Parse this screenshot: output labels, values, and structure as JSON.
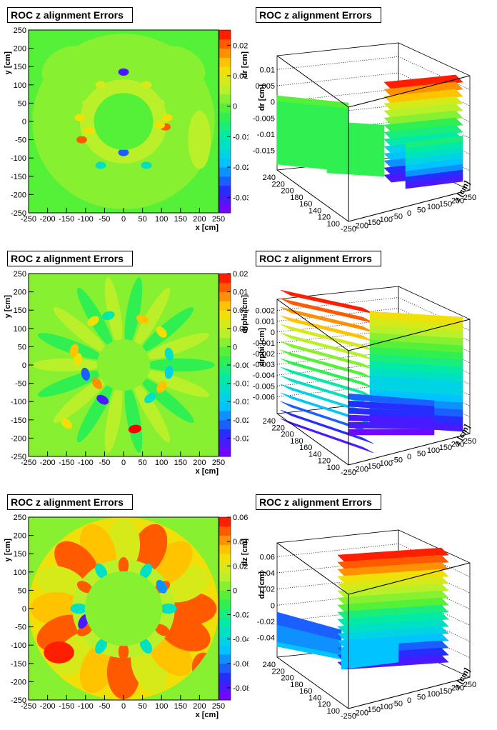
{
  "chart_data": [
    {
      "type": "heatmap",
      "title": "ROC z alignment Errors",
      "xlabel": "x [cm]",
      "ylabel": "y [cm]",
      "zlabel": "dr [cm]",
      "xlim": [
        -250,
        250
      ],
      "ylim": [
        -250,
        250
      ],
      "zlim": [
        -0.035,
        0.025
      ],
      "x_ticks": [
        "-250",
        "-200",
        "-150",
        "-100",
        "-50",
        "0",
        "50",
        "100",
        "150",
        "200",
        "250"
      ],
      "y_ticks": [
        "250",
        "200",
        "150",
        "100",
        "50",
        "0",
        "-50",
        "-100",
        "-150",
        "-200",
        "-250"
      ],
      "z_ticks": [
        "0.02",
        "0.01",
        "0",
        "-0.01",
        "-0.02",
        "-0.03"
      ],
      "z_tick_values": [
        0.02,
        0.01,
        0,
        -0.01,
        -0.02,
        -0.03
      ]
    },
    {
      "type": "surface",
      "title": "ROC z alignment Errors",
      "zlabel": "dr [cm]",
      "ylabel": "z [cm]",
      "z_ticks": [
        "0.01",
        "0.005",
        "0",
        "-0.005",
        "-0.01",
        "-0.015"
      ],
      "r_ticks": [
        "240",
        "220",
        "200",
        "180",
        "160",
        "140",
        "120",
        "100"
      ],
      "x_ticks": [
        "-250",
        "-200",
        "-150",
        "-100",
        "-50",
        "0",
        "50",
        "100",
        "150",
        "200",
        "250"
      ]
    },
    {
      "type": "heatmap",
      "title": "ROC z alignment Errors",
      "xlabel": "x [cm]",
      "ylabel": "y [cm]",
      "zlabel": "drphi [cm]",
      "xlim": [
        -250,
        250
      ],
      "ylim": [
        -250,
        250
      ],
      "zlim": [
        -0.03,
        0.02
      ],
      "x_ticks": [
        "-250",
        "-200",
        "-150",
        "-100",
        "-50",
        "0",
        "50",
        "100",
        "150",
        "200",
        "250"
      ],
      "y_ticks": [
        "250",
        "200",
        "150",
        "100",
        "50",
        "0",
        "-50",
        "-100",
        "-150",
        "-200",
        "-250"
      ],
      "z_ticks": [
        "0.02",
        "0.015",
        "0.01",
        "0.005",
        "0",
        "-0.005",
        "-0.01",
        "-0.015",
        "-0.02",
        "-0.025"
      ],
      "z_tick_values": [
        0.02,
        0.015,
        0.01,
        0.005,
        0,
        -0.005,
        -0.01,
        -0.015,
        -0.02,
        -0.025
      ]
    },
    {
      "type": "surface",
      "title": "ROC z alignment Errors",
      "zlabel": "drphi [cm]",
      "ylabel": "z [cm]",
      "z_ticks": [
        "0.002",
        "0.001",
        "0",
        "-0.001",
        "-0.002",
        "-0.003",
        "-0.004",
        "-0.005",
        "-0.006"
      ],
      "r_ticks": [
        "240",
        "220",
        "200",
        "180",
        "160",
        "140",
        "120",
        "100"
      ],
      "x_ticks": [
        "-250",
        "-200",
        "-150",
        "-100",
        "-50",
        "0",
        "50",
        "100",
        "150",
        "200",
        "250"
      ]
    },
    {
      "type": "heatmap",
      "title": "ROC z alignment Errors",
      "xlabel": "x [cm]",
      "ylabel": "y [cm]",
      "zlabel": "dz [cm]",
      "xlim": [
        -250,
        250
      ],
      "ylim": [
        -250,
        250
      ],
      "zlim": [
        -0.09,
        0.06
      ],
      "x_ticks": [
        "-250",
        "-200",
        "-150",
        "-100",
        "-50",
        "0",
        "50",
        "100",
        "150",
        "200",
        "250"
      ],
      "y_ticks": [
        "250",
        "200",
        "150",
        "100",
        "50",
        "0",
        "-50",
        "-100",
        "-150",
        "-200",
        "-250"
      ],
      "z_ticks": [
        "0.06",
        "0.04",
        "0.02",
        "0",
        "-0.02",
        "-0.04",
        "-0.06",
        "-0.08"
      ],
      "z_tick_values": [
        0.06,
        0.04,
        0.02,
        0,
        -0.02,
        -0.04,
        -0.06,
        -0.08
      ]
    },
    {
      "type": "surface",
      "title": "ROC z alignment Errors",
      "zlabel": "dz [cm]",
      "ylabel": "z [cm]",
      "z_ticks": [
        "0.06",
        "0.04",
        "0.02",
        "0",
        "-0.02",
        "-0.04"
      ],
      "r_ticks": [
        "240",
        "220",
        "200",
        "180",
        "160",
        "140",
        "120",
        "100"
      ],
      "x_ticks": [
        "-250",
        "-200",
        "-150",
        "-100",
        "-50",
        "0",
        "50",
        "100",
        "150",
        "200",
        "250"
      ]
    }
  ]
}
